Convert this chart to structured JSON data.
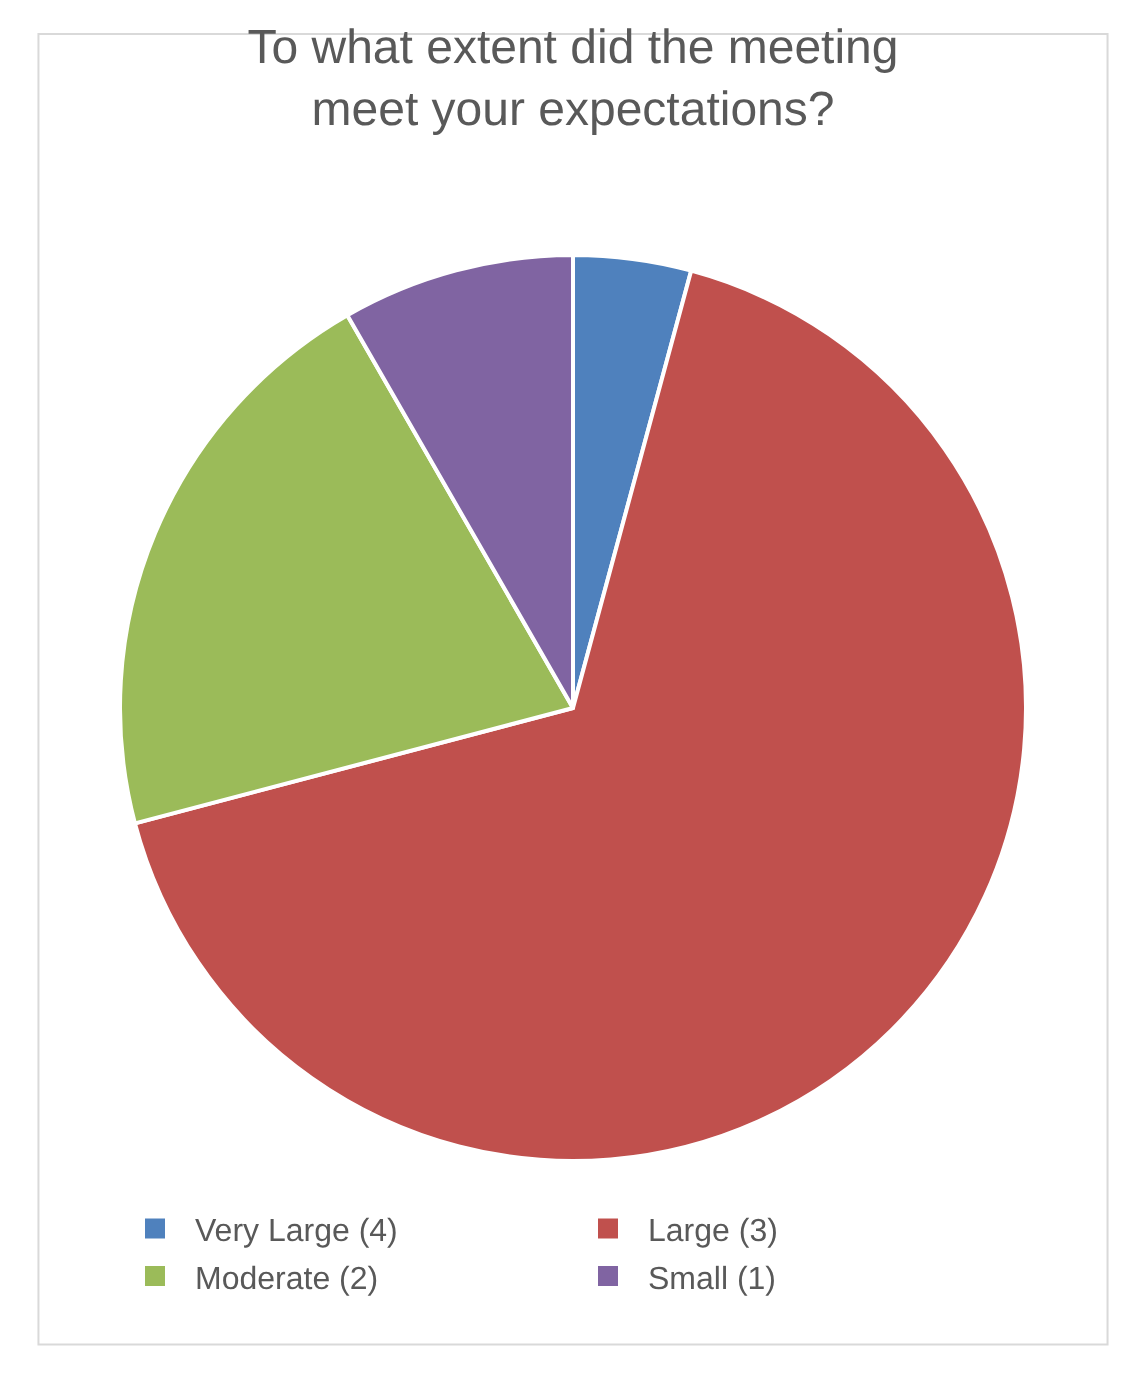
{
  "chart_data": {
    "type": "pie",
    "title": "To what extent did the meeting meet your expectations?",
    "categories": [
      "Very Large (4)",
      "Large (3)",
      "Moderate (2)",
      "Small (1)"
    ],
    "values": [
      4.2,
      66.7,
      20.8,
      8.3
    ],
    "colors": [
      "#4f81bd",
      "#c0504d",
      "#9bbb59",
      "#8064a2"
    ],
    "legend": "bottom"
  }
}
